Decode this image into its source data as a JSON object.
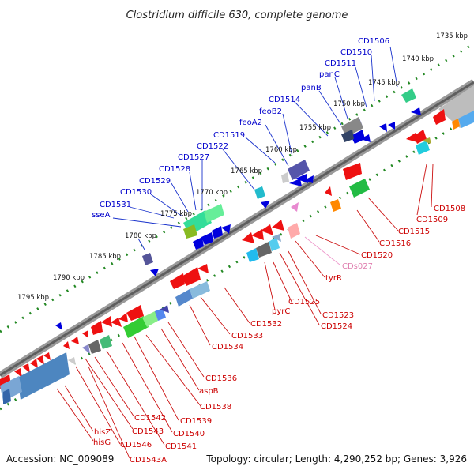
{
  "title": "Clostridium difficile 630, complete genome",
  "footer": {
    "accession": "Accession: NC_009089",
    "summary": "Topology: circular; Length: 4,290,252 bp; Genes: 3,926"
  },
  "colors": {
    "forward_label": "#0000cc",
    "reverse_label": "#cc0000",
    "ncrna_label": "#e080b0",
    "scale_dots": "#228822",
    "backbone": "#888888"
  },
  "kbp_labels": {
    "k1735": "1735 kbp",
    "k1740": "1740 kbp",
    "k1745": "1745 kbp",
    "k1750": "1750 kbp",
    "k1755": "1755 kbp",
    "k1760": "1760 kbp",
    "k1765": "1765 kbp",
    "k1770": "1770 kbp",
    "k1775": "1775 kbp",
    "k1780": "1780 kbp",
    "k1785": "1785 kbp",
    "k1790": "1790 kbp",
    "k1795": "1795 kbp"
  },
  "forward_genes": {
    "g_CD1506": "CD1506",
    "g_CD1510": "CD1510",
    "g_CD1511": "CD1511",
    "g_panC": "panC",
    "g_panB": "panB",
    "g_CD1514": "CD1514",
    "g_feoB2": "feoB2",
    "g_feoA2": "feoA2",
    "g_CD1519": "CD1519",
    "g_CD1522": "CD1522",
    "g_CD1527": "CD1527",
    "g_CD1528": "CD1528",
    "g_CD1529": "CD1529",
    "g_CD1530": "CD1530",
    "g_CD1531": "CD1531",
    "g_sseA": "sseA"
  },
  "reverse_genes": {
    "g_CD1508": "CD1508",
    "g_CD1509": "CD1509",
    "g_CD1515": "CD1515",
    "g_CD1516": "CD1516",
    "g_CD1520": "CD1520",
    "g_CDs027": "CDs027",
    "g_tyrR": "tyrR",
    "g_CD1523": "CD1523",
    "g_CD1524": "CD1524",
    "g_CD1525": "CD1525",
    "g_pyrC": "pyrC",
    "g_CD1532": "CD1532",
    "g_CD1533": "CD1533",
    "g_CD1534": "CD1534",
    "g_CD1536": "CD1536",
    "g_aspB": "aspB",
    "g_CD1538": "CD1538",
    "g_CD1539": "CD1539",
    "g_CD1540": "CD1540",
    "g_CD1541": "CD1541",
    "g_CD1542": "CD1542",
    "g_CD1543": "CD1543",
    "g_CD1546": "CD1546",
    "g_hisZ": "hisZ",
    "g_hisG": "hisG",
    "g_CD1543A": "CD1543A"
  }
}
